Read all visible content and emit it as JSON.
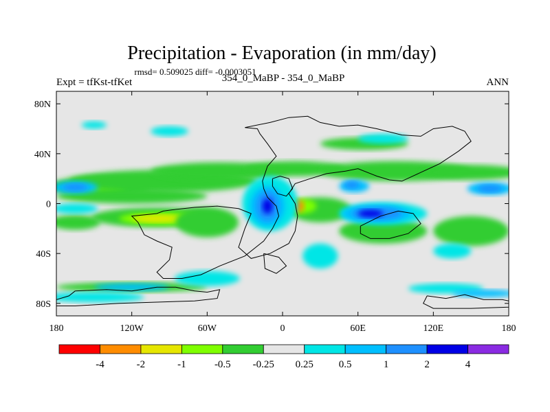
{
  "chart_data": {
    "type": "heatmap",
    "title": "Precipitation - Evaporation (in mm/day)",
    "stats": "rmsd= 0.509025 diff= -0.0003051",
    "left_label": "Expt = tfKst-tfKet",
    "center_label": "354_0_MaBP - 354_0_MaBP",
    "right_label": "ANN",
    "x_axis": {
      "range": [
        -180,
        180
      ],
      "ticks": [
        {
          "value": -180,
          "label": "180"
        },
        {
          "value": -120,
          "label": "120W"
        },
        {
          "value": -60,
          "label": "60W"
        },
        {
          "value": 0,
          "label": "0"
        },
        {
          "value": 60,
          "label": "60E"
        },
        {
          "value": 120,
          "label": "120E"
        },
        {
          "value": 180,
          "label": "180"
        }
      ]
    },
    "y_axis": {
      "range": [
        -90,
        90
      ],
      "ticks": [
        {
          "value": 80,
          "label": "80N"
        },
        {
          "value": 40,
          "label": "40N"
        },
        {
          "value": 0,
          "label": "0"
        },
        {
          "value": -40,
          "label": "40S"
        },
        {
          "value": -80,
          "label": "80S"
        }
      ]
    },
    "colorbar": {
      "colors": [
        "#ff0000",
        "#ff8c00",
        "#e6e600",
        "#7fff00",
        "#32cd32",
        "#e6e6e6",
        "#00e6e6",
        "#00bfff",
        "#1e90ff",
        "#0000e6",
        "#8a2be2"
      ],
      "labels": [
        "-4",
        "-2",
        "-1",
        "-0.5",
        "-0.25",
        "0.25",
        "0.5",
        "1",
        "2",
        "4"
      ]
    },
    "regions": [
      {
        "lon": -100,
        "lat": -11,
        "rlon": 52,
        "rlat": 8,
        "level": 4
      },
      {
        "lon": -95,
        "lat": -12,
        "rlon": 35,
        "rlat": 5,
        "level": 3
      },
      {
        "lon": -100,
        "lat": -12,
        "rlon": 20,
        "rlat": 3,
        "level": 2
      },
      {
        "lon": -145,
        "lat": 14,
        "rlon": 40,
        "rlat": 8,
        "level": 4
      },
      {
        "lon": -150,
        "lat": 12,
        "rlon": 25,
        "rlat": 5,
        "level": 3
      },
      {
        "lon": -95,
        "lat": 18,
        "rlon": 75,
        "rlat": 9,
        "level": 4
      },
      {
        "lon": -50,
        "lat": 26,
        "rlon": 55,
        "rlat": 7,
        "level": 4
      },
      {
        "lon": 10,
        "lat": 28,
        "rlon": 40,
        "rlat": 6,
        "level": 4
      },
      {
        "lon": 90,
        "lat": 26,
        "rlon": 60,
        "rlat": 8,
        "level": 4
      },
      {
        "lon": 150,
        "lat": 25,
        "rlon": 40,
        "rlat": 6,
        "level": 4
      },
      {
        "lon": -120,
        "lat": 6,
        "rlon": 60,
        "rlat": 6,
        "level": 4
      },
      {
        "lon": 30,
        "lat": -5,
        "rlon": 25,
        "rlat": 10,
        "level": 4
      },
      {
        "lon": 15,
        "lat": -2,
        "rlon": 12,
        "rlat": 6,
        "level": 3
      },
      {
        "lon": 12,
        "lat": -2,
        "rlon": 5,
        "rlat": 5,
        "level": 1
      },
      {
        "lon": 80,
        "lat": -22,
        "rlon": 35,
        "rlat": 10,
        "level": 4
      },
      {
        "lon": -60,
        "lat": -15,
        "rlon": 25,
        "rlat": 12,
        "level": 4
      },
      {
        "lon": -165,
        "lat": -15,
        "rlon": 20,
        "rlat": 6,
        "level": 4
      },
      {
        "lon": 150,
        "lat": -22,
        "rlon": 30,
        "rlat": 12,
        "level": 4
      },
      {
        "lon": -120,
        "lat": -67,
        "rlon": 60,
        "rlat": 4,
        "level": 4
      },
      {
        "lon": 65,
        "lat": 48,
        "rlon": 35,
        "rlat": 5,
        "level": 4
      },
      {
        "lon": -165,
        "lat": 13,
        "rlon": 18,
        "rlat": 5,
        "level": 7
      },
      {
        "lon": -165,
        "lat": 13,
        "rlon": 10,
        "rlat": 3,
        "level": 8
      },
      {
        "lon": 165,
        "lat": 12,
        "rlon": 18,
        "rlat": 5,
        "level": 7
      },
      {
        "lon": 165,
        "lat": 12,
        "rlon": 10,
        "rlat": 3,
        "level": 8
      },
      {
        "lon": -165,
        "lat": -4,
        "rlon": 18,
        "rlat": 4,
        "level": 6
      },
      {
        "lon": -10,
        "lat": 0,
        "rlon": 22,
        "rlat": 22,
        "level": 6
      },
      {
        "lon": -12,
        "lat": -2,
        "rlon": 14,
        "rlat": 16,
        "level": 7
      },
      {
        "lon": -12,
        "lat": -2,
        "rlon": 9,
        "rlat": 12,
        "level": 8
      },
      {
        "lon": -12,
        "lat": -2,
        "rlon": 4,
        "rlat": 6,
        "level": 9
      },
      {
        "lon": 57,
        "lat": 14,
        "rlon": 12,
        "rlat": 5,
        "level": 7
      },
      {
        "lon": 55,
        "lat": 15,
        "rlon": 6,
        "rlat": 3,
        "level": 8
      },
      {
        "lon": 80,
        "lat": -8,
        "rlon": 35,
        "rlat": 9,
        "level": 6
      },
      {
        "lon": 75,
        "lat": -8,
        "rlon": 28,
        "rlat": 7,
        "level": 7
      },
      {
        "lon": 75,
        "lat": -8,
        "rlon": 20,
        "rlat": 5,
        "level": 8
      },
      {
        "lon": 70,
        "lat": -8,
        "rlon": 10,
        "rlat": 3,
        "level": 9
      },
      {
        "lon": 30,
        "lat": -42,
        "rlon": 14,
        "rlat": 10,
        "level": 6
      },
      {
        "lon": -60,
        "lat": -60,
        "rlon": 26,
        "rlat": 6,
        "level": 6
      },
      {
        "lon": -150,
        "lat": -75,
        "rlon": 40,
        "rlat": 4,
        "level": 6
      },
      {
        "lon": -120,
        "lat": -67,
        "rlon": 30,
        "rlat": 3,
        "level": 7
      },
      {
        "lon": 130,
        "lat": -68,
        "rlon": 30,
        "rlat": 4,
        "level": 6
      },
      {
        "lon": 160,
        "lat": -72,
        "rlon": 25,
        "rlat": 3,
        "level": 7
      },
      {
        "lon": 80,
        "lat": 52,
        "rlon": 20,
        "rlat": 4,
        "level": 6
      },
      {
        "lon": -90,
        "lat": 58,
        "rlon": 15,
        "rlat": 4,
        "level": 6
      },
      {
        "lon": -150,
        "lat": 63,
        "rlon": 10,
        "rlat": 3,
        "level": 6
      },
      {
        "lon": 135,
        "lat": -38,
        "rlon": 15,
        "rlat": 6,
        "level": 6
      }
    ],
    "coastlines": [
      [
        [
          -30,
          61
        ],
        [
          -20,
          60
        ],
        [
          -18,
          56
        ],
        [
          -12,
          48
        ],
        [
          -5,
          38
        ],
        [
          -12,
          30
        ],
        [
          -16,
          18
        ],
        [
          -15,
          12
        ],
        [
          -12,
          5
        ],
        [
          -5,
          -2
        ],
        [
          -3,
          -10
        ],
        [
          -8,
          -20
        ],
        [
          -15,
          -30
        ],
        [
          -30,
          -42
        ],
        [
          -50,
          -50
        ],
        [
          -65,
          -57
        ],
        [
          -80,
          -60
        ],
        [
          -95,
          -60
        ],
        [
          -100,
          -55
        ],
        [
          -90,
          -45
        ],
        [
          -88,
          -35
        ],
        [
          -100,
          -30
        ],
        [
          -110,
          -25
        ],
        [
          -115,
          -15
        ],
        [
          -120,
          -10
        ],
        [
          -100,
          -8
        ],
        [
          -95,
          -6
        ],
        [
          -88,
          -5
        ],
        [
          -70,
          -3
        ],
        [
          -52,
          -2
        ],
        [
          -35,
          -4
        ],
        [
          -25,
          -8
        ],
        [
          -30,
          -20
        ],
        [
          -35,
          -35
        ],
        [
          -25,
          -44
        ],
        [
          -10,
          -40
        ],
        [
          5,
          -32
        ],
        [
          10,
          -22
        ],
        [
          12,
          -10
        ],
        [
          10,
          0
        ],
        [
          5,
          8
        ],
        [
          10,
          16
        ],
        [
          22,
          20
        ],
        [
          35,
          24
        ],
        [
          50,
          26
        ],
        [
          60,
          28
        ],
        [
          75,
          22
        ],
        [
          85,
          19
        ],
        [
          95,
          18
        ],
        [
          110,
          25
        ],
        [
          125,
          32
        ],
        [
          140,
          42
        ],
        [
          150,
          50
        ],
        [
          145,
          58
        ],
        [
          135,
          62
        ],
        [
          120,
          60
        ],
        [
          110,
          54
        ],
        [
          95,
          55
        ],
        [
          75,
          60
        ],
        [
          60,
          63
        ],
        [
          45,
          62
        ],
        [
          30,
          65
        ],
        [
          20,
          70
        ],
        [
          5,
          69
        ],
        [
          -10,
          65
        ],
        [
          -30,
          61
        ]
      ],
      [
        [
          -8,
          20
        ],
        [
          -2,
          22
        ],
        [
          5,
          20
        ],
        [
          8,
          12
        ],
        [
          3,
          6
        ],
        [
          -4,
          8
        ],
        [
          -8,
          14
        ],
        [
          -8,
          20
        ]
      ],
      [
        [
          62,
          -18
        ],
        [
          78,
          -10
        ],
        [
          92,
          -6
        ],
        [
          104,
          -8
        ],
        [
          110,
          -16
        ],
        [
          100,
          -24
        ],
        [
          85,
          -28
        ],
        [
          70,
          -28
        ],
        [
          62,
          -24
        ],
        [
          62,
          -18
        ]
      ],
      [
        [
          -15,
          -40
        ],
        [
          -3,
          -43
        ],
        [
          3,
          -50
        ],
        [
          -5,
          -56
        ],
        [
          -14,
          -52
        ],
        [
          -15,
          -40
        ]
      ],
      [
        [
          -165,
          -70
        ],
        [
          -140,
          -69
        ],
        [
          -120,
          -70
        ],
        [
          -100,
          -67
        ],
        [
          -85,
          -67
        ],
        [
          -70,
          -70
        ],
        [
          -60,
          -71
        ],
        [
          -50,
          -69
        ],
        [
          -52,
          -76
        ],
        [
          -70,
          -78
        ],
        [
          -100,
          -79
        ],
        [
          -130,
          -80
        ],
        [
          -165,
          -82
        ],
        [
          -180,
          -82
        ],
        [
          -180,
          -77
        ],
        [
          -170,
          -74
        ],
        [
          -165,
          -70
        ]
      ],
      [
        [
          115,
          -74
        ],
        [
          130,
          -76
        ],
        [
          145,
          -73
        ],
        [
          160,
          -77
        ],
        [
          175,
          -77
        ],
        [
          180,
          -78
        ],
        [
          180,
          -83
        ],
        [
          150,
          -84
        ],
        [
          120,
          -84
        ],
        [
          112,
          -80
        ],
        [
          115,
          -74
        ]
      ]
    ]
  }
}
